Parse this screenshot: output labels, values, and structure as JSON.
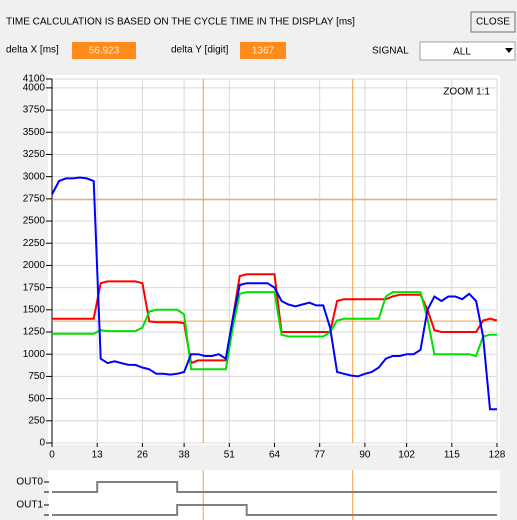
{
  "header": {
    "title": "TIME CALCULATION IS BASED ON THE CYCLE TIME IN THE DISPLAY [ms]",
    "close": "CLOSE",
    "delta_x_label": "delta X [ms]",
    "delta_x": 56.923,
    "delta_y_label": "delta Y [digit]",
    "delta_y": 1367,
    "signal_label": "SIGNAL",
    "signal": "ALL"
  },
  "chart_data": [
    {
      "type": "line",
      "annotation": "ZOOM 1:1",
      "x": [
        0,
        2,
        4,
        6,
        8,
        10,
        12,
        14,
        16,
        18,
        20,
        22,
        24,
        26,
        28,
        30,
        32,
        34,
        36,
        38,
        40,
        42,
        44,
        46,
        48,
        50,
        52,
        54,
        56,
        58,
        60,
        62,
        64,
        66,
        68,
        70,
        72,
        74,
        76,
        78,
        80,
        82,
        84,
        86,
        88,
        90,
        92,
        94,
        96,
        98,
        100,
        102,
        104,
        106,
        108,
        110,
        112,
        114,
        116,
        118,
        120,
        122,
        124,
        126,
        128
      ],
      "series": [
        {
          "color": "#ff0000",
          "values": [
            1400,
            1400,
            1400,
            1400,
            1400,
            1400,
            1400,
            1800,
            1820,
            1820,
            1820,
            1820,
            1820,
            1800,
            1370,
            1360,
            1360,
            1360,
            1360,
            1350,
            900,
            930,
            930,
            930,
            930,
            930,
            1400,
            1880,
            1900,
            1900,
            1900,
            1900,
            1900,
            1250,
            1250,
            1250,
            1250,
            1250,
            1250,
            1250,
            1250,
            1600,
            1620,
            1620,
            1620,
            1620,
            1620,
            1620,
            1620,
            1650,
            1670,
            1670,
            1670,
            1670,
            1500,
            1270,
            1250,
            1250,
            1250,
            1250,
            1250,
            1250,
            1380,
            1400,
            1380
          ]
        },
        {
          "color": "#00e000",
          "values": [
            1230,
            1230,
            1230,
            1230,
            1230,
            1230,
            1230,
            1270,
            1260,
            1260,
            1260,
            1260,
            1260,
            1300,
            1480,
            1500,
            1500,
            1500,
            1500,
            1450,
            830,
            830,
            830,
            830,
            830,
            830,
            1300,
            1680,
            1700,
            1700,
            1700,
            1700,
            1700,
            1220,
            1200,
            1200,
            1200,
            1200,
            1200,
            1200,
            1250,
            1380,
            1400,
            1400,
            1400,
            1400,
            1400,
            1400,
            1650,
            1700,
            1700,
            1700,
            1700,
            1700,
            1400,
            1000,
            1000,
            1000,
            1000,
            1000,
            1000,
            980,
            1200,
            1220,
            1220
          ]
        },
        {
          "color": "#0000ff",
          "values": [
            2800,
            2950,
            2980,
            2980,
            2990,
            2980,
            2950,
            950,
            900,
            920,
            900,
            880,
            880,
            850,
            830,
            780,
            780,
            770,
            780,
            800,
            1000,
            1000,
            980,
            980,
            1000,
            950,
            1400,
            1780,
            1800,
            1800,
            1800,
            1800,
            1750,
            1600,
            1560,
            1540,
            1560,
            1580,
            1550,
            1550,
            1300,
            800,
            780,
            760,
            750,
            780,
            800,
            850,
            950,
            980,
            980,
            1000,
            1000,
            1050,
            1500,
            1650,
            1600,
            1650,
            1650,
            1620,
            1680,
            1600,
            1200,
            380,
            380
          ]
        }
      ],
      "xlim": [
        0,
        128
      ],
      "xticks": [
        0,
        13,
        26,
        38,
        51,
        64,
        77,
        90,
        102,
        115,
        128
      ],
      "ylim": [
        0,
        4100
      ],
      "yticks": [
        0,
        250,
        500,
        750,
        1000,
        1250,
        1500,
        1750,
        2000,
        2250,
        2500,
        2750,
        3000,
        3250,
        3500,
        3750,
        4000,
        4100
      ],
      "grid": true,
      "cursors": {
        "color": "#f0a040",
        "x": [
          43.5,
          86.5
        ],
        "y": [
          2740,
          1373
        ]
      }
    },
    {
      "type": "step",
      "color": "#808080",
      "xlim": [
        0,
        128
      ],
      "series": [
        {
          "name": "OUT0",
          "x": [
            0,
            13,
            36,
            128
          ],
          "values": [
            0,
            1,
            0,
            0
          ]
        },
        {
          "name": "OUT1",
          "x": [
            0,
            36,
            56,
            128
          ],
          "values": [
            0,
            1,
            0,
            0
          ]
        }
      ]
    }
  ]
}
